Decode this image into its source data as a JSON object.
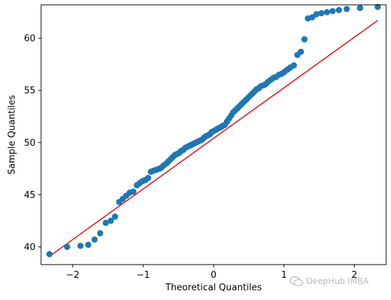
{
  "chart_data": {
    "type": "scatter",
    "title": "",
    "xlabel": "Theoretical Quantiles",
    "ylabel": "Sample Quantiles",
    "xlim": [
      -2.45,
      2.45
    ],
    "ylim": [
      38.3,
      63.2
    ],
    "xticks": [
      -2,
      -1,
      0,
      1,
      2
    ],
    "yticks": [
      40,
      45,
      50,
      55,
      60
    ],
    "xtick_labels": [
      "−2",
      "−1",
      "0",
      "1",
      "2"
    ],
    "ytick_labels": [
      "40",
      "45",
      "50",
      "55",
      "60"
    ],
    "grid": false,
    "legend": "none",
    "colors": {
      "points": "#1f77b4",
      "line": "#e8151b"
    },
    "reference_line": {
      "x": [
        -2.33,
        2.33
      ],
      "y": [
        39.1,
        61.7
      ]
    },
    "points": {
      "x": [
        -2.33,
        -2.08,
        -1.89,
        -1.78,
        -1.69,
        -1.61,
        -1.53,
        -1.46,
        -1.4,
        -1.34,
        -1.29,
        -1.24,
        -1.19,
        -1.14,
        -1.09,
        -1.05,
        -1.01,
        -0.97,
        -0.93,
        -0.89,
        -0.85,
        -0.81,
        -0.77,
        -0.74,
        -0.71,
        -0.67,
        -0.64,
        -0.61,
        -0.58,
        -0.55,
        -0.52,
        -0.49,
        -0.46,
        -0.43,
        -0.4,
        -0.37,
        -0.34,
        -0.31,
        -0.28,
        -0.25,
        -0.22,
        -0.19,
        -0.16,
        -0.13,
        -0.11,
        -0.08,
        -0.05,
        -0.03,
        0.0,
        0.03,
        0.05,
        0.08,
        0.11,
        0.13,
        0.16,
        0.19,
        0.22,
        0.25,
        0.28,
        0.31,
        0.34,
        0.37,
        0.4,
        0.43,
        0.46,
        0.49,
        0.52,
        0.55,
        0.58,
        0.61,
        0.64,
        0.67,
        0.71,
        0.74,
        0.77,
        0.81,
        0.85,
        0.89,
        0.93,
        0.97,
        1.01,
        1.05,
        1.09,
        1.14,
        1.19,
        1.24,
        1.29,
        1.34,
        1.4,
        1.46,
        1.53,
        1.61,
        1.69,
        1.78,
        1.89,
        2.08,
        2.33
      ],
      "y": [
        39.3,
        40.0,
        40.1,
        40.2,
        40.7,
        41.3,
        42.3,
        42.5,
        42.9,
        44.3,
        44.6,
        44.9,
        45.2,
        45.3,
        45.9,
        46.1,
        46.3,
        46.4,
        46.6,
        47.2,
        47.3,
        47.4,
        47.5,
        47.6,
        47.8,
        48.0,
        48.2,
        48.4,
        48.6,
        48.8,
        48.9,
        49.0,
        49.2,
        49.3,
        49.5,
        49.6,
        49.7,
        49.8,
        49.9,
        50.0,
        50.1,
        50.2,
        50.3,
        50.5,
        50.6,
        50.7,
        50.8,
        51.0,
        51.1,
        51.2,
        51.3,
        51.4,
        51.5,
        51.6,
        51.7,
        52.0,
        52.3,
        52.6,
        52.9,
        53.1,
        53.3,
        53.5,
        53.7,
        53.9,
        54.1,
        54.3,
        54.5,
        54.7,
        54.9,
        55.1,
        55.2,
        55.4,
        55.5,
        55.6,
        55.8,
        56.0,
        56.2,
        56.3,
        56.5,
        56.6,
        56.8,
        57.0,
        57.2,
        57.4,
        58.4,
        58.7,
        59.9,
        61.9,
        62.0,
        62.3,
        62.4,
        62.5,
        62.6,
        62.7,
        62.8,
        62.9,
        63.0
      ]
    }
  },
  "watermark": {
    "text": "DeepHub IMBA"
  }
}
